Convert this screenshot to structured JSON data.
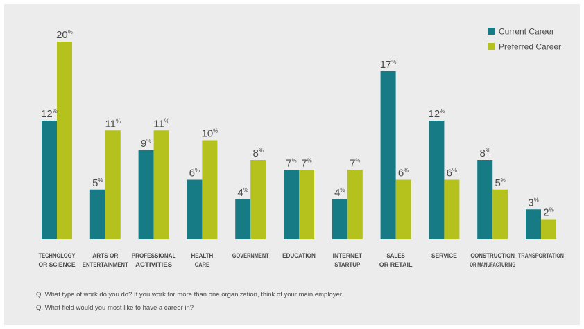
{
  "chart_data": {
    "type": "bar",
    "categories": [
      [
        "TECHNOLOGY",
        "OR SCIENCE"
      ],
      [
        "ARTS OR",
        "ENTERTAINMENT"
      ],
      [
        "PROFESSIONAL",
        "ACTIVITIES"
      ],
      [
        "HEALTH",
        "CARE"
      ],
      [
        "GOVERNMENT"
      ],
      [
        "EDUCATION"
      ],
      [
        "INTERNET",
        "STARTUP"
      ],
      [
        "SALES",
        "OR RETAIL"
      ],
      [
        "SERVICE"
      ],
      [
        "CONSTRUCTION",
        "OR MANUFACTURING"
      ],
      [
        "TRANSPORTATION"
      ]
    ],
    "series": [
      {
        "name": "Current Career",
        "color": "#177b86",
        "values": [
          12,
          5,
          9,
          6,
          4,
          7,
          4,
          17,
          12,
          8,
          3
        ]
      },
      {
        "name": "Preferred Career",
        "color": "#b5c21e",
        "values": [
          20,
          11,
          11,
          10,
          8,
          7,
          7,
          6,
          6,
          5,
          2
        ]
      }
    ],
    "value_suffix": "%",
    "ylim": [
      0,
      20
    ],
    "grid": false,
    "legend_position": "top-right",
    "title": "",
    "xlabel": "",
    "ylabel": ""
  },
  "footnotes": {
    "q1": "Q. What type of work do you do? If you work for more than one organization, think of your main employer.",
    "q2": "Q. What field would you most like to have a career in?"
  }
}
